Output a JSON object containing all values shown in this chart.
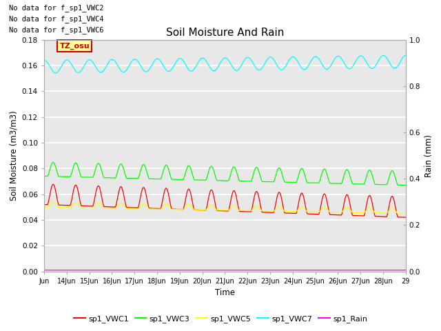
{
  "title": "Soil Moisture And Rain",
  "ylabel_left": "Soil Moisture (m3/m3)",
  "ylabel_right": "Rain (mm)",
  "xlabel": "Time",
  "ylim_left": [
    0.0,
    0.18
  ],
  "ylim_right": [
    0.0,
    1.0
  ],
  "x_ticks": [
    "Jun",
    "14Jun",
    "15Jun",
    "16Jun",
    "17Jun",
    "18Jun",
    "19Jun",
    "20Jun",
    "21Jun",
    "22Jun",
    "23Jun",
    "24Jun",
    "25Jun",
    "26Jun",
    "27Jun",
    "28Jun",
    "29"
  ],
  "no_data_texts": [
    "No data for f_sp1_VWC2",
    "No data for f_sp1_VWC4",
    "No data for f_sp1_VWC6"
  ],
  "watermark_text": "TZ_osu",
  "watermark_bg": "#ffff99",
  "watermark_fg": "#cc0000",
  "line_colors": {
    "sp1_VWC1": "#ff0000",
    "sp1_VWC3": "#00ff00",
    "sp1_VWC5": "#ffff00",
    "sp1_VWC7": "#00ffff",
    "sp1_Rain": "#ff00ff"
  },
  "background_color": "#e8e8e8",
  "grid_color": "#ffffff",
  "num_points": 2880
}
